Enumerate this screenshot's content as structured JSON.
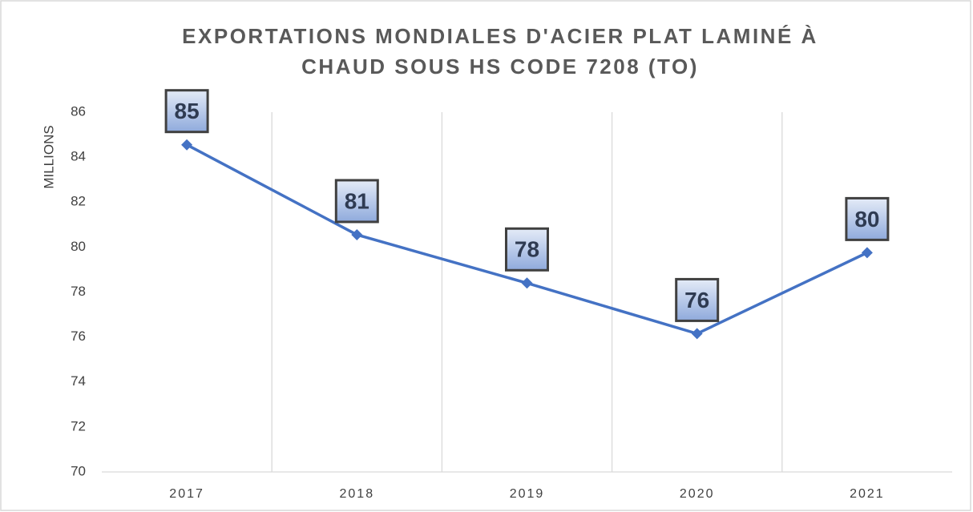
{
  "chart_data": {
    "type": "line",
    "title": [
      "EXPORTATIONS MONDIALES D'ACIER PLAT LAMINÉ À",
      "CHAUD SOUS HS CODE 7208 (TO)"
    ],
    "y_label": "MILLIONS",
    "categories": [
      "2017",
      "2018",
      "2019",
      "2020",
      "2021"
    ],
    "series": [
      {
        "name": "Exportations",
        "color": "#4472c4",
        "values": [
          84.55,
          80.55,
          78.4,
          76.15,
          79.75
        ],
        "value_labels": [
          "85",
          "81",
          "78",
          "76",
          "80"
        ]
      }
    ],
    "ylim": [
      70,
      86
    ],
    "yticks": [
      70,
      72,
      74,
      76,
      78,
      80,
      82,
      84,
      86
    ],
    "grid": "x"
  }
}
